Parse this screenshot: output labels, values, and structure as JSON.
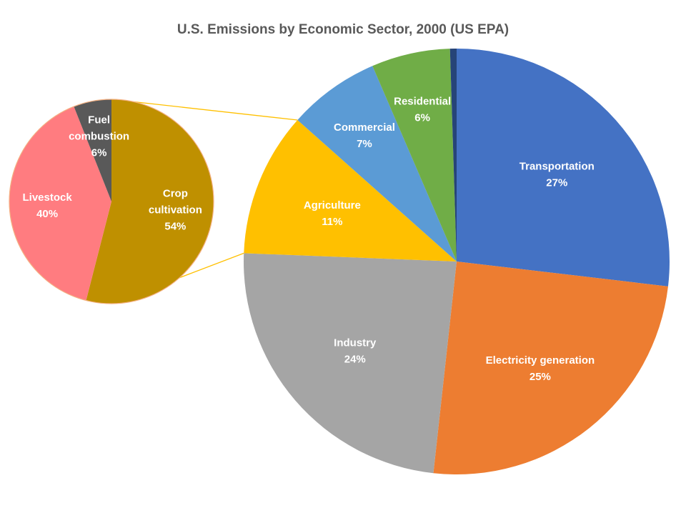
{
  "chart_data": [
    {
      "type": "pie",
      "title": "U.S. Emissions by Economic Sector, 2000  (US EPA)",
      "slices": [
        {
          "label": "Transportation",
          "value": 27,
          "value_label": "27%",
          "color": "#4472C4",
          "label_color": "#FFFFFF"
        },
        {
          "label": "Electricity generation",
          "value": 25,
          "value_label": "25%",
          "color": "#ED7D31",
          "label_color": "#FFFFFF"
        },
        {
          "label": "Industry",
          "value": 24,
          "value_label": "24%",
          "color": "#A5A5A5",
          "label_color": "#FFFFFF"
        },
        {
          "label": "Agriculture",
          "value": 11,
          "value_label": "11%",
          "color": "#FFC000",
          "label_color": "#FFFFFF"
        },
        {
          "label": "Commercial",
          "value": 7,
          "value_label": "7%",
          "color": "#5B9BD5",
          "label_color": "#FFFFFF"
        },
        {
          "label": "Residential",
          "value": 6,
          "value_label": "6%",
          "color": "#70AD47",
          "label_color": "#FFFFFF"
        },
        {
          "label": "",
          "value": 0.5,
          "value_label": "",
          "color": "#264478",
          "label_color": "#FFFFFF"
        }
      ]
    },
    {
      "type": "pie",
      "title": "",
      "breakdown_of": "Agriculture",
      "slices": [
        {
          "label": "Crop cultivation",
          "label_lines": [
            "Crop",
            "cultivation"
          ],
          "value": 54,
          "value_label": "54%",
          "color": "#BF9000",
          "label_color": "#FFFFFF"
        },
        {
          "label": "Livestock",
          "label_lines": [
            "Livestock"
          ],
          "value": 40,
          "value_label": "40%",
          "color": "#FF7C80",
          "label_color": "#FFFFFF"
        },
        {
          "label": "Fuel combustion",
          "label_lines": [
            "Fuel",
            "combustion"
          ],
          "value": 6,
          "value_label": "6%",
          "color": "#595959",
          "label_color": "#FFFFFF"
        }
      ]
    }
  ],
  "colors": {
    "connector": "#FFC000",
    "inset_border": "#F4B183",
    "title": "#595959"
  }
}
